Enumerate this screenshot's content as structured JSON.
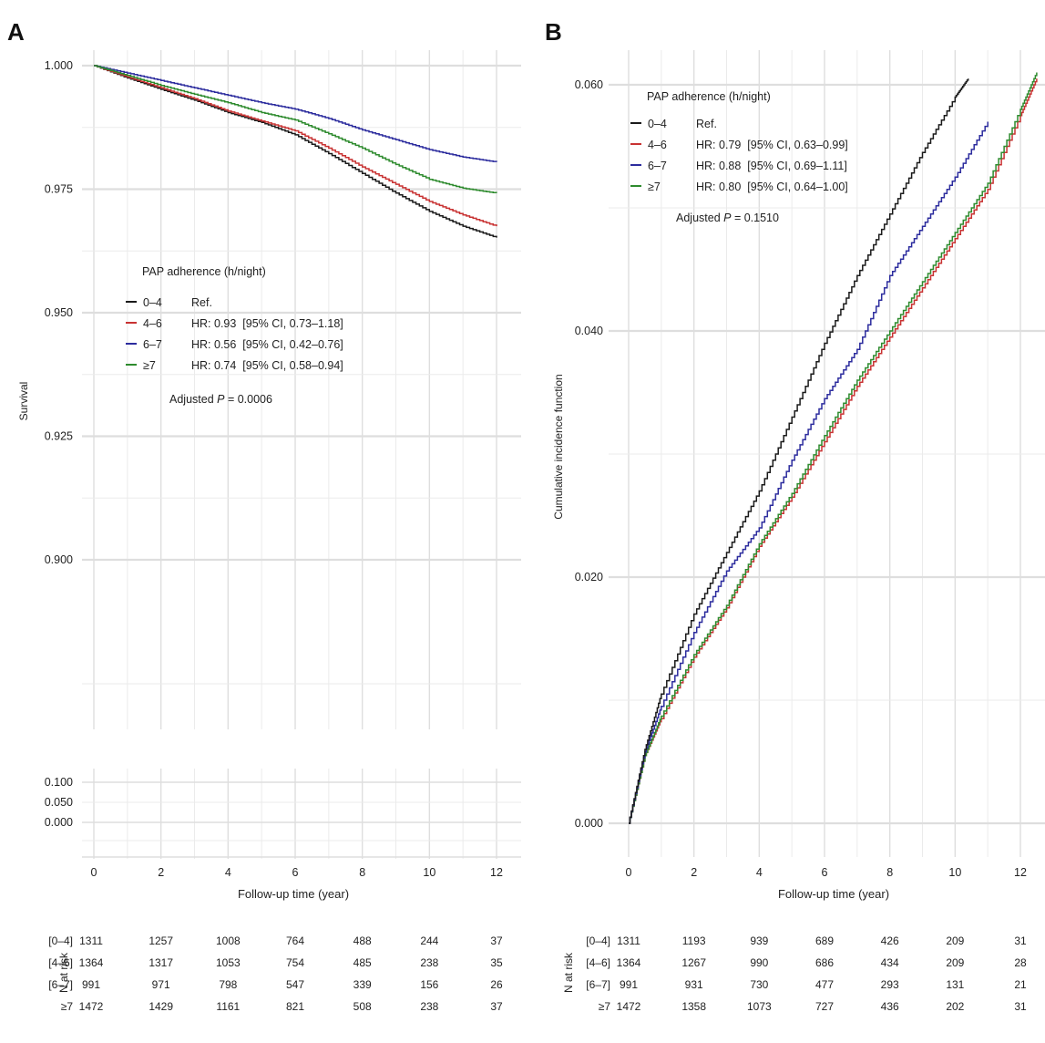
{
  "panels": [
    {
      "label": "A",
      "legend": {
        "title": "PAP adherence (h/night)",
        "entries": [
          {
            "group": "0–4",
            "text": "Ref."
          },
          {
            "group": "4–6",
            "text": "HR: 0.93  [95% CI, 0.73–1.18]"
          },
          {
            "group": "6–7",
            "text": "HR: 0.56  [95% CI, 0.42–0.76]"
          },
          {
            "group": "≥7",
            "text": "HR: 0.74  [95% CI, 0.58–0.94]"
          }
        ],
        "p_label": "Adjusted ",
        "p_symbol": "P",
        "p_value": " = 0.0006"
      },
      "risk_table": {
        "title": "N at risk",
        "rows": [
          {
            "label": "[0–4]",
            "values": [
              1311,
              1257,
              1008,
              764,
              488,
              244,
              37
            ]
          },
          {
            "label": "[4–6]",
            "values": [
              1364,
              1317,
              1053,
              754,
              485,
              238,
              35
            ]
          },
          {
            "label": "[6–7]",
            "values": [
              991,
              971,
              798,
              547,
              339,
              156,
              26
            ]
          },
          {
            "label": "≥7",
            "values": [
              1472,
              1429,
              1161,
              821,
              508,
              238,
              37
            ]
          }
        ]
      }
    },
    {
      "label": "B",
      "legend": {
        "title": "PAP adherence (h/night)",
        "entries": [
          {
            "group": "0–4",
            "text": "Ref."
          },
          {
            "group": "4–6",
            "text": "HR: 0.79  [95% CI, 0.63–0.99]"
          },
          {
            "group": "6–7",
            "text": "HR: 0.88  [95% CI, 0.69–1.11]"
          },
          {
            "group": "≥7",
            "text": "HR: 0.80  [95% CI, 0.64–1.00]"
          }
        ],
        "p_label": "Adjusted ",
        "p_symbol": "P",
        "p_value": " = 0.1510"
      },
      "risk_table": {
        "title": "N at risk",
        "rows": [
          {
            "label": "[0–4]",
            "values": [
              1311,
              1193,
              939,
              689,
              426,
              209,
              31
            ]
          },
          {
            "label": "[4–6]",
            "values": [
              1364,
              1267,
              990,
              686,
              434,
              209,
              28
            ]
          },
          {
            "label": "[6–7]",
            "values": [
              991,
              931,
              730,
              477,
              293,
              131,
              21
            ]
          },
          {
            "label": "≥7",
            "values": [
              1472,
              1358,
              1073,
              727,
              436,
              202,
              31
            ]
          }
        ]
      }
    }
  ],
  "chart_data": [
    {
      "type": "line",
      "panel": "A",
      "title": "",
      "xlabel": "Follow-up time (year)",
      "ylabel": "Survival",
      "xlim": [
        0,
        12
      ],
      "x_ticks": [
        "0",
        "2",
        "4",
        "6",
        "8",
        "10",
        "12"
      ],
      "y_ticks_main": [
        "1.000",
        "0.975",
        "0.950",
        "0.925",
        "0.900"
      ],
      "y_ticks_lower": [
        "0.100",
        "0.050",
        "0.000"
      ],
      "grid": true,
      "legend_position": "middle-left",
      "series": [
        {
          "name": "0–4",
          "color": "#1a1a1a",
          "x": [
            0,
            1,
            2,
            3,
            4,
            5,
            6,
            7,
            8,
            9,
            10,
            11,
            12
          ],
          "y": [
            1.0,
            0.9975,
            0.9952,
            0.993,
            0.9905,
            0.9885,
            0.986,
            0.9822,
            0.9782,
            0.9742,
            0.9705,
            0.9675,
            0.9652
          ]
        },
        {
          "name": "4–6",
          "color": "#c83232",
          "x": [
            0,
            1,
            2,
            3,
            4,
            5,
            6,
            7,
            8,
            9,
            10,
            11,
            12
          ],
          "y": [
            1.0,
            0.9977,
            0.9955,
            0.9933,
            0.9908,
            0.9888,
            0.9868,
            0.9833,
            0.9795,
            0.976,
            0.9725,
            0.9698,
            0.9675
          ]
        },
        {
          "name": "6–7",
          "color": "#2c2c9e",
          "x": [
            0,
            1,
            2,
            3,
            4,
            5,
            6,
            7,
            8,
            9,
            10,
            11,
            12
          ],
          "y": [
            1.0,
            0.9985,
            0.997,
            0.9955,
            0.994,
            0.9925,
            0.9912,
            0.9893,
            0.987,
            0.985,
            0.983,
            0.9815,
            0.9805
          ]
        },
        {
          "name": "≥7",
          "color": "#2e8b2e",
          "x": [
            0,
            1,
            2,
            3,
            4,
            5,
            6,
            7,
            8,
            9,
            10,
            11,
            12
          ],
          "y": [
            1.0,
            0.998,
            0.996,
            0.9942,
            0.9925,
            0.9905,
            0.989,
            0.9862,
            0.9833,
            0.98,
            0.977,
            0.9752,
            0.9742
          ]
        }
      ]
    },
    {
      "type": "line",
      "panel": "B",
      "title": "",
      "xlabel": "Follow-up time (year)",
      "ylabel": "Cumulative incidence function",
      "xlim": [
        0,
        12.5
      ],
      "ylim": [
        -0.002,
        0.062
      ],
      "x_ticks": [
        "0",
        "2",
        "4",
        "6",
        "8",
        "10",
        "12"
      ],
      "y_ticks": [
        "0.000",
        "0.020",
        "0.040",
        "0.060"
      ],
      "grid": true,
      "legend_position": "top-left",
      "series": [
        {
          "name": "0–4",
          "color": "#1a1a1a",
          "x": [
            0,
            0.5,
            1,
            2,
            3,
            4,
            5,
            6,
            7,
            8,
            9,
            10,
            10.4
          ],
          "y": [
            0,
            0.006,
            0.0105,
            0.017,
            0.022,
            0.027,
            0.033,
            0.039,
            0.0445,
            0.0495,
            0.0545,
            0.059,
            0.0605
          ]
        },
        {
          "name": "4–6",
          "color": "#c83232",
          "x": [
            0,
            0.5,
            1,
            2,
            3,
            4,
            5,
            6,
            7,
            8,
            9,
            10,
            11,
            12,
            12.5
          ],
          "y": [
            0,
            0.0055,
            0.0085,
            0.0135,
            0.0175,
            0.0225,
            0.0265,
            0.031,
            0.0355,
            0.0395,
            0.0435,
            0.0475,
            0.0515,
            0.0575,
            0.0605
          ]
        },
        {
          "name": "6–7",
          "color": "#2c2c9e",
          "x": [
            0,
            0.5,
            1,
            2,
            3,
            4,
            5,
            6,
            7,
            8,
            9,
            10,
            11
          ],
          "y": [
            0,
            0.0058,
            0.0095,
            0.0155,
            0.0205,
            0.024,
            0.0295,
            0.0345,
            0.0385,
            0.0445,
            0.0485,
            0.0525,
            0.057
          ]
        },
        {
          "name": "≥7",
          "color": "#2e8b2e",
          "x": [
            0,
            0.5,
            1,
            2,
            3,
            4,
            5,
            6,
            7,
            8,
            9,
            10,
            11,
            12,
            12.5
          ],
          "y": [
            0,
            0.0055,
            0.0087,
            0.0137,
            0.0177,
            0.0227,
            0.0268,
            0.0315,
            0.036,
            0.04,
            0.044,
            0.048,
            0.052,
            0.058,
            0.061
          ]
        }
      ]
    }
  ]
}
